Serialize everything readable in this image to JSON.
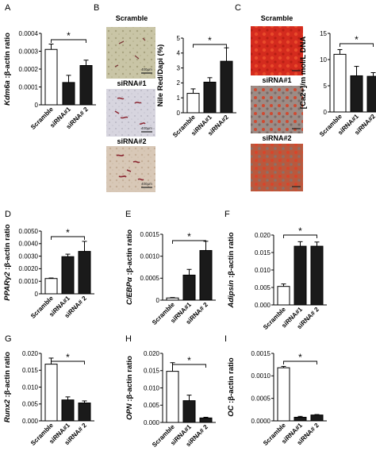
{
  "figure": {
    "micrographs": {
      "B": {
        "labels": [
          "Scramble",
          "siRNA#1",
          "siRNA#2"
        ],
        "scale": [
          "400µm",
          "400µm",
          "400µm"
        ]
      },
      "C": {
        "labels": [
          "Scramble",
          "siRNA#1",
          "siRNA#2"
        ]
      }
    }
  },
  "colors": {
    "scramble": "#ffffff",
    "sirna": "#1a1a1a",
    "axis": "#000000"
  },
  "chart_data": [
    {
      "id": "A",
      "panel_label": "A",
      "type": "bar",
      "categories": [
        "Scramble",
        "siRNA#1",
        "siRNA# 2"
      ],
      "values": [
        0.00031,
        0.000125,
        0.00022
      ],
      "errors": [
        3e-05,
        4e-05,
        3e-05
      ],
      "ylabel": "Kdm6a :β-actin ratio",
      "ylabel_italic": "Kdm6a",
      "ylabel_rest": " :β-actin ratio",
      "ylim": [
        0,
        0.0004
      ],
      "yticks": [
        0,
        0.0001,
        0.0002,
        0.0003,
        0.0004
      ],
      "ytick_labels": [
        "0",
        "0.0001",
        "0.0002",
        "0.0003",
        "0.0004"
      ],
      "significance": "*"
    },
    {
      "id": "B",
      "panel_label": "B",
      "type": "bar",
      "categories": [
        "Scramble",
        "siRNA#1",
        "siRNA#2"
      ],
      "values": [
        1.3,
        2.05,
        3.45
      ],
      "errors": [
        0.3,
        0.3,
        0.9
      ],
      "ylabel": "Nile Red/Dapi (%)",
      "ylabel_italic": "",
      "ylabel_rest": "Nile Red/Dapi (%)",
      "ylim": [
        0,
        5
      ],
      "yticks": [
        0,
        1,
        2,
        3,
        4,
        5
      ],
      "ytick_labels": [
        "0",
        "1",
        "2",
        "3",
        "4",
        "5"
      ],
      "significance": "*"
    },
    {
      "id": "C",
      "panel_label": "C",
      "type": "bar",
      "categories": [
        "Scramble",
        "siRNA#1",
        "siRNA#2"
      ],
      "values": [
        11,
        6.9,
        6.8
      ],
      "errors": [
        0.9,
        1.8,
        0.7
      ],
      "ylabel": "[Ca2+]/m mol/L DNA",
      "ylabel_italic": "",
      "ylabel_rest": "[Ca2+]/m mol/L DNA",
      "ylim": [
        0,
        15
      ],
      "yticks": [
        0,
        5,
        10,
        15
      ],
      "ytick_labels": [
        "0",
        "5",
        "10",
        "15"
      ],
      "significance": "*"
    },
    {
      "id": "D",
      "panel_label": "D",
      "type": "bar",
      "categories": [
        "Scramble",
        "siRNA#1",
        "siRNA# 2"
      ],
      "values": [
        0.00122,
        0.00296,
        0.00338
      ],
      "errors": [
        4e-05,
        0.0002,
        0.0008
      ],
      "ylabel": "PPARγ2 :β-actin ratio",
      "ylabel_italic": "PPARγ2",
      "ylabel_rest": " :β-actin ratio",
      "ylim": [
        0,
        0.005
      ],
      "yticks": [
        0,
        0.001,
        0.002,
        0.003,
        0.004,
        0.005
      ],
      "ytick_labels": [
        "0",
        "0.0010",
        "0.0020",
        "0.0030",
        "0.0040",
        "0.0050"
      ],
      "significance": "*"
    },
    {
      "id": "E",
      "panel_label": "E",
      "type": "bar",
      "categories": [
        "Scramble",
        "siRNA#1",
        "siRNA# 2"
      ],
      "values": [
        5e-05,
        0.00057,
        0.00113
      ],
      "errors": [
        1e-05,
        0.00013,
        0.00021
      ],
      "ylabel": "C/EBPα :β-actin ratio",
      "ylabel_italic": "C/EBPα",
      "ylabel_rest": " :β-actin ratio",
      "ylim": [
        0,
        0.0015
      ],
      "yticks": [
        0,
        0.0005,
        0.001,
        0.0015
      ],
      "ytick_labels": [
        "0",
        "0.0005",
        "0.0010",
        "0.0015"
      ],
      "significance": "*"
    },
    {
      "id": "F",
      "panel_label": "F",
      "type": "bar",
      "categories": [
        "Scramble",
        "siRNA#1",
        "siRNA# 2"
      ],
      "values": [
        0.0053,
        0.0168,
        0.0168
      ],
      "errors": [
        0.0007,
        0.0013,
        0.0012
      ],
      "ylabel": "Adipsin :β-actin ratio",
      "ylabel_italic": "Adipsin",
      "ylabel_rest": " :β-actin ratio",
      "ylim": [
        0,
        0.02
      ],
      "yticks": [
        0,
        0.005,
        0.01,
        0.015,
        0.02
      ],
      "ytick_labels": [
        "0.000",
        "0.005",
        "0.010",
        "0.015",
        "0.020"
      ],
      "significance": "*"
    },
    {
      "id": "G",
      "panel_label": "G",
      "type": "bar",
      "categories": [
        "Scramble",
        "siRNA#1",
        "siRNA# 2"
      ],
      "values": [
        0.0168,
        0.0062,
        0.0053
      ],
      "errors": [
        0.0018,
        0.0009,
        0.0006
      ],
      "ylabel": "Runx2 :β-actin ratio",
      "ylabel_italic": "Runx2",
      "ylabel_rest": " :β-actin ratio",
      "ylim": [
        0,
        0.02
      ],
      "yticks": [
        0,
        0.005,
        0.01,
        0.015,
        0.02
      ],
      "ytick_labels": [
        "0.000",
        "0.005",
        "0.010",
        "0.015",
        "0.020"
      ],
      "significance": "*"
    },
    {
      "id": "H",
      "panel_label": "H",
      "type": "bar",
      "categories": [
        "Scramble",
        "siRNA#1",
        "siRNA# 2"
      ],
      "values": [
        0.0148,
        0.0063,
        0.0013
      ],
      "errors": [
        0.0025,
        0.0016,
        0.0002
      ],
      "ylabel": "OPN :β-actin ratio",
      "ylabel_italic": "OPN",
      "ylabel_rest": " :β-actin ratio",
      "ylim": [
        0,
        0.02
      ],
      "yticks": [
        0,
        0.005,
        0.01,
        0.015,
        0.02
      ],
      "ytick_labels": [
        "0.000",
        "0.005",
        "0.010",
        "0.015",
        "0.020"
      ],
      "significance": "*"
    },
    {
      "id": "I",
      "panel_label": "I",
      "type": "bar",
      "categories": [
        "Scramble",
        "siRNA#1",
        "siRNA# 2"
      ],
      "values": [
        0.00118,
        8e-05,
        0.00013
      ],
      "errors": [
        3e-05,
        2e-05,
        1e-05
      ],
      "ylabel": "OC :β-actin ratio",
      "ylabel_italic": "OC",
      "ylabel_rest": " :β-actin ratio",
      "ylim": [
        0,
        0.0015
      ],
      "yticks": [
        0,
        0.0005,
        0.001,
        0.0015
      ],
      "ytick_labels": [
        "0.0000",
        "0.0005",
        "0.0010",
        "0.0015"
      ],
      "significance": "*"
    }
  ]
}
